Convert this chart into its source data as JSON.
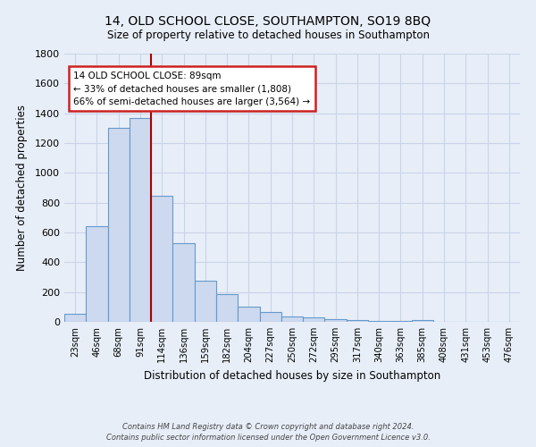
{
  "title": "14, OLD SCHOOL CLOSE, SOUTHAMPTON, SO19 8BQ",
  "subtitle": "Size of property relative to detached houses in Southampton",
  "xlabel": "Distribution of detached houses by size in Southampton",
  "ylabel": "Number of detached properties",
  "categories": [
    "23sqm",
    "46sqm",
    "68sqm",
    "91sqm",
    "114sqm",
    "136sqm",
    "159sqm",
    "182sqm",
    "204sqm",
    "227sqm",
    "250sqm",
    "272sqm",
    "295sqm",
    "317sqm",
    "340sqm",
    "363sqm",
    "385sqm",
    "408sqm",
    "431sqm",
    "453sqm",
    "476sqm"
  ],
  "values": [
    55,
    640,
    1305,
    1370,
    845,
    530,
    275,
    185,
    105,
    65,
    35,
    30,
    18,
    12,
    8,
    8,
    10,
    2,
    2,
    1,
    0
  ],
  "bar_color": "#ccd9ee",
  "bar_edge_color": "#6699cc",
  "background_color": "#e8eef8",
  "grid_color": "#d0d8e8",
  "vline_color": "#aa0000",
  "annotation_text": "14 OLD SCHOOL CLOSE: 89sqm\n← 33% of detached houses are smaller (1,808)\n66% of semi-detached houses are larger (3,564) →",
  "annotation_box_facecolor": "#ffffff",
  "annotation_box_edgecolor": "#cc2222",
  "ylim": [
    0,
    1800
  ],
  "yticks": [
    0,
    200,
    400,
    600,
    800,
    1000,
    1200,
    1400,
    1600,
    1800
  ],
  "title_fontsize": 10,
  "subtitle_fontsize": 8.5,
  "footer_line1": "Contains HM Land Registry data © Crown copyright and database right 2024.",
  "footer_line2": "Contains public sector information licensed under the Open Government Licence v3.0."
}
